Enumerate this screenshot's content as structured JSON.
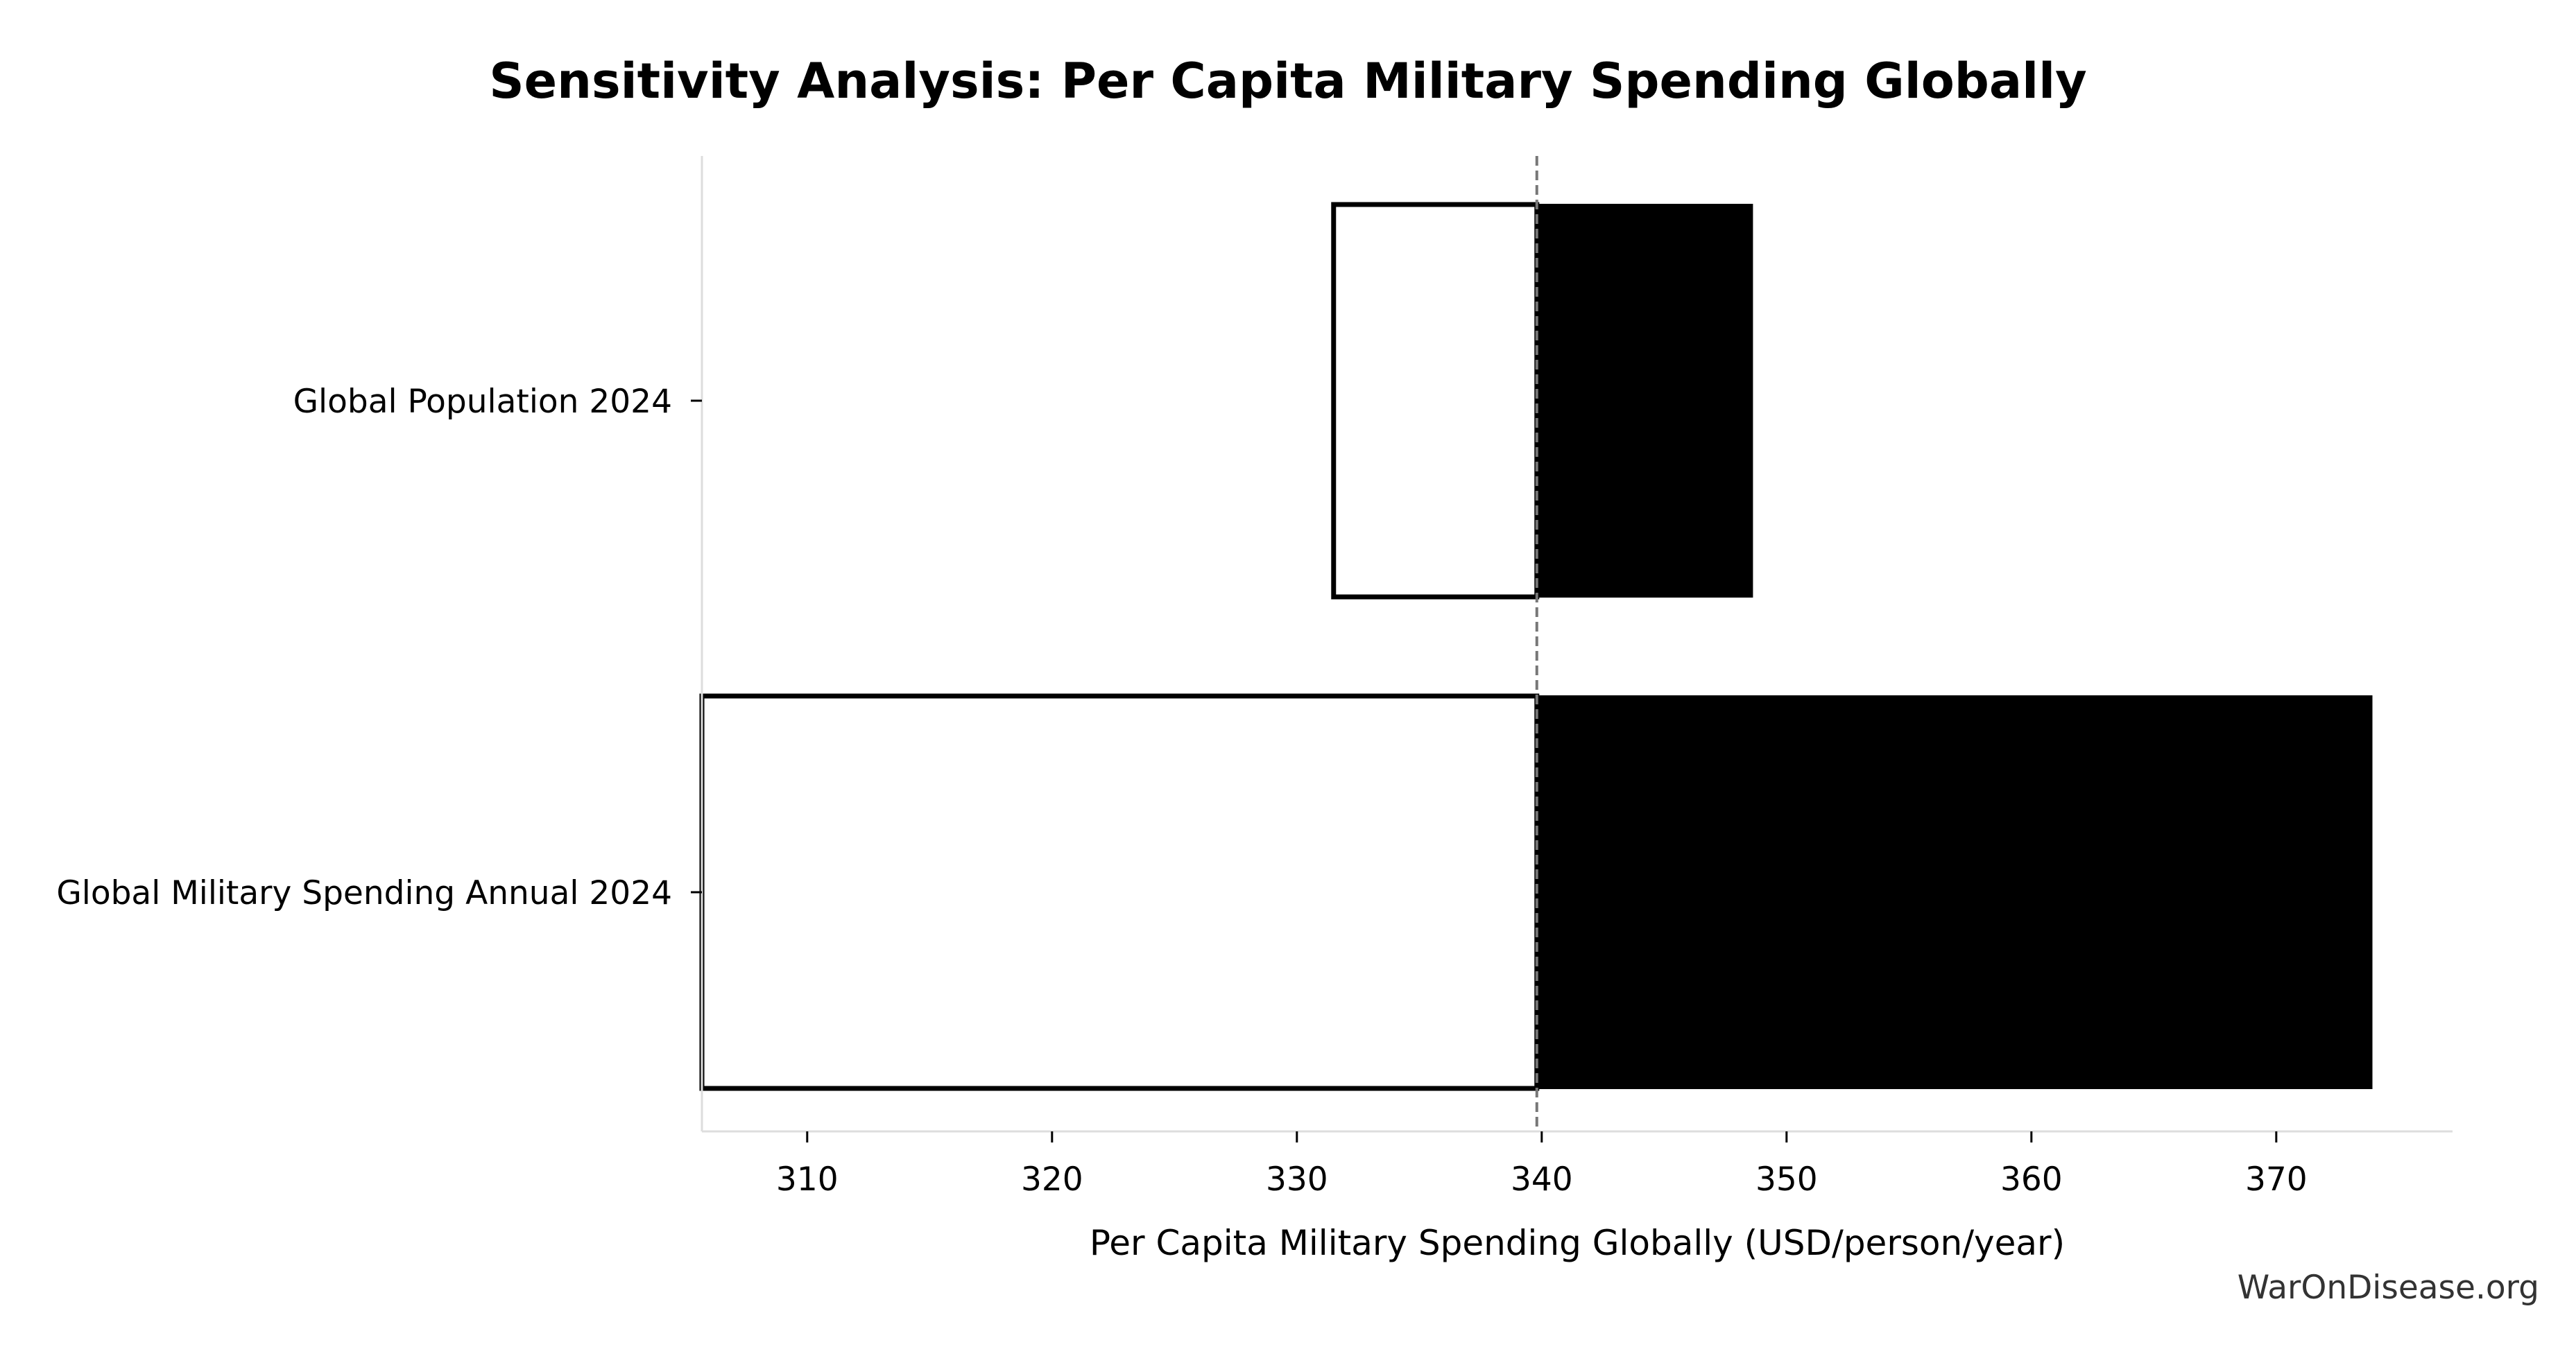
{
  "chart_data": {
    "type": "tornado",
    "title": "Sensitivity Analysis: Per Capita Military Spending Globally",
    "xlabel": "Per Capita Military Spending Globally (USD/person/year)",
    "ylabel": "",
    "baseline": 339.8,
    "xlim": [
      305.7,
      377.2
    ],
    "xticks": [
      310,
      320,
      330,
      340,
      350,
      360,
      370
    ],
    "categories": [
      "Global Population 2024",
      "Global Military Spending Annual 2024"
    ],
    "bars": [
      {
        "category": "Global Population 2024",
        "low": 331.5,
        "high": 348.6
      },
      {
        "category": "Global Military Spending Annual 2024",
        "low": 305.7,
        "high": 373.9
      }
    ],
    "colors": {
      "low": "#ffffff",
      "high": "#000000",
      "edge": "#000000",
      "baseline": "#777777",
      "axis": "#dddddd"
    }
  },
  "watermark": "WarOnDisease.org"
}
